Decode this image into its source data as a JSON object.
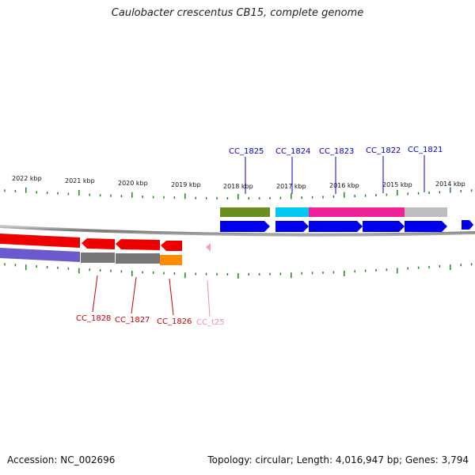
{
  "title": "Caulobacter crescentus CB15, complete genome",
  "footer": {
    "accession": "Accession: NC_002696",
    "topology": "Topology: circular; Length: 4,016,947 bp; Genes: 3,794"
  },
  "scale_labels": [
    "2022 kbp",
    "2021 kbp",
    "2020 kbp",
    "2019 kbp",
    "2018 kbp",
    "2017 kbp",
    "2016 kbp",
    "2015 kbp",
    "2014 kbp"
  ],
  "gene_labels": [
    "CC_1825",
    "CC_1824",
    "CC_1823",
    "CC_1822",
    "CC_1821",
    "CC_1828",
    "CC_1827",
    "CC_1826",
    "CC_t25"
  ],
  "colors": {
    "forward_cds": "#0000ee",
    "reverse_cds": "#ee0000",
    "trna": "#f4a0c8",
    "backbone": "#888888",
    "ticks": "#1a8a1a",
    "label_blue": "#0000cc",
    "label_red": "#cc0000",
    "label_pink": "#f08cb8",
    "cog_olive": "#6b8e23",
    "cog_cyan": "#00c8f0",
    "cog_magenta": "#f0229a",
    "cog_gray": "#bdbdbd",
    "cog_slate": "#6a5acd",
    "cog_dark_gray": "#777777",
    "cog_orange": "#ff8c00"
  }
}
